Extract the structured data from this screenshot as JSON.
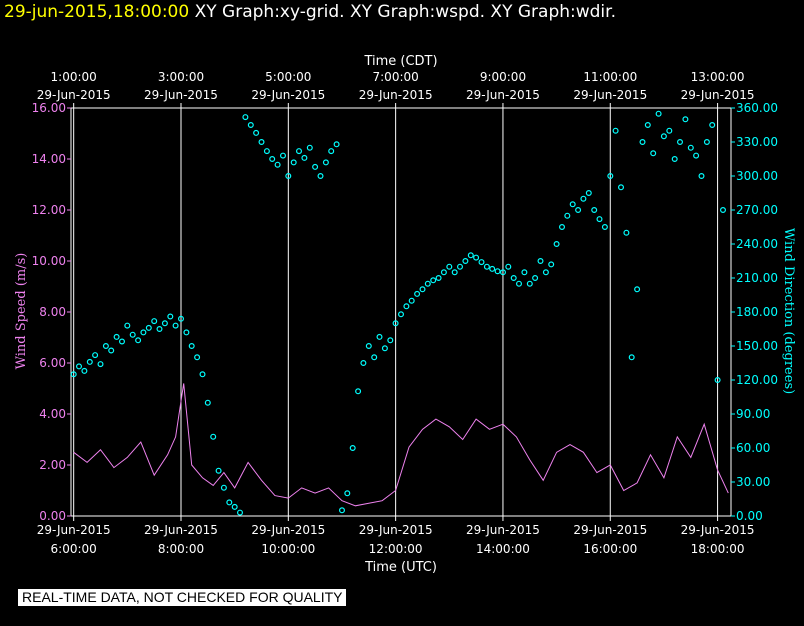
{
  "header": {
    "timestamp": "29-jun-2015,18:00:00",
    "graphs": "XY Graph:xy-grid.  XY Graph:wspd.  XY Graph:wdir."
  },
  "footer": {
    "quality_note": "REAL-TIME DATA, NOT CHECKED FOR QUALITY"
  },
  "colors": {
    "background": "#000000",
    "axes": "#ffffff",
    "grid": "#ffffff",
    "wind_speed": "#ee82ee",
    "wind_direction": "#00ffff",
    "title_timestamp": "#ffff00"
  },
  "chart_data": {
    "type": "line",
    "title": "XY Graph:xy-grid.  XY Graph:wspd.  XY Graph:wdir.",
    "grid": true,
    "x": {
      "bottom_label": "Time (UTC)",
      "top_label": "Time (CDT)",
      "range_utc_hours": [
        5.95,
        18.25
      ],
      "ticks_utc_hours": [
        6,
        8,
        10,
        12,
        14,
        16,
        18
      ],
      "bottom_ticks": [
        {
          "date": "29-Jun-2015",
          "time": "6:00:00"
        },
        {
          "date": "29-Jun-2015",
          "time": "8:00:00"
        },
        {
          "date": "29-Jun-2015",
          "time": "10:00:00"
        },
        {
          "date": "29-Jun-2015",
          "time": "12:00:00"
        },
        {
          "date": "29-Jun-2015",
          "time": "14:00:00"
        },
        {
          "date": "29-Jun-2015",
          "time": "16:00:00"
        },
        {
          "date": "29-Jun-2015",
          "time": "18:00:00"
        }
      ],
      "top_ticks": [
        {
          "date": "29-Jun-2015",
          "time": "1:00:00"
        },
        {
          "date": "29-Jun-2015",
          "time": "3:00:00"
        },
        {
          "date": "29-Jun-2015",
          "time": "5:00:00"
        },
        {
          "date": "29-Jun-2015",
          "time": "7:00:00"
        },
        {
          "date": "29-Jun-2015",
          "time": "9:00:00"
        },
        {
          "date": "29-Jun-2015",
          "time": "11:00:00"
        },
        {
          "date": "29-Jun-2015",
          "time": "13:00:00"
        }
      ]
    },
    "y_left": {
      "label": "Wind Speed (m/s)",
      "range": [
        0,
        16
      ],
      "ticks": [
        "0.00",
        "2.00",
        "4.00",
        "6.00",
        "8.00",
        "10.00",
        "12.00",
        "14.00",
        "16.00"
      ]
    },
    "y_right": {
      "label": "Wind Direction (degrees)",
      "range": [
        0,
        360
      ],
      "ticks": [
        "0.00",
        "30.00",
        "60.00",
        "90.00",
        "120.00",
        "150.00",
        "180.00",
        "210.00",
        "240.00",
        "270.00",
        "300.00",
        "330.00",
        "360.00"
      ]
    },
    "series": [
      {
        "name": "wspd",
        "axis": "left",
        "style": "line",
        "x_utc_hours": [
          6.0,
          6.25,
          6.5,
          6.75,
          7.0,
          7.25,
          7.5,
          7.75,
          7.9,
          8.05,
          8.2,
          8.4,
          8.6,
          8.8,
          9.0,
          9.25,
          9.5,
          9.75,
          10.0,
          10.25,
          10.5,
          10.75,
          11.0,
          11.25,
          11.5,
          11.75,
          12.0,
          12.25,
          12.5,
          12.75,
          13.0,
          13.25,
          13.5,
          13.75,
          14.0,
          14.25,
          14.5,
          14.75,
          15.0,
          15.25,
          15.5,
          15.75,
          16.0,
          16.25,
          16.5,
          16.75,
          17.0,
          17.25,
          17.5,
          17.75,
          18.0,
          18.2
        ],
        "values": [
          2.5,
          2.1,
          2.6,
          1.9,
          2.3,
          2.9,
          1.6,
          2.4,
          3.1,
          5.2,
          2.0,
          1.5,
          1.2,
          1.7,
          1.1,
          2.1,
          1.4,
          0.8,
          0.7,
          1.1,
          0.9,
          1.1,
          0.6,
          0.4,
          0.5,
          0.6,
          1.0,
          2.7,
          3.4,
          3.8,
          3.5,
          3.0,
          3.8,
          3.4,
          3.6,
          3.1,
          2.2,
          1.4,
          2.5,
          2.8,
          2.5,
          1.7,
          2.0,
          1.0,
          1.3,
          2.4,
          1.5,
          3.1,
          2.3,
          3.6,
          1.8,
          0.9
        ]
      },
      {
        "name": "wdir",
        "axis": "right",
        "style": "points",
        "x_utc_hours": [
          6.0,
          6.1,
          6.2,
          6.3,
          6.4,
          6.5,
          6.6,
          6.7,
          6.8,
          6.9,
          7.0,
          7.1,
          7.2,
          7.3,
          7.4,
          7.5,
          7.6,
          7.7,
          7.8,
          7.9,
          8.0,
          8.1,
          8.2,
          8.3,
          8.4,
          8.5,
          8.6,
          8.7,
          8.8,
          8.9,
          9.0,
          9.1,
          9.2,
          9.3,
          9.4,
          9.5,
          9.6,
          9.7,
          9.8,
          9.9,
          10.0,
          10.1,
          10.2,
          10.3,
          10.4,
          10.5,
          10.6,
          10.7,
          10.8,
          10.9,
          11.0,
          11.1,
          11.2,
          11.3,
          11.4,
          11.5,
          11.6,
          11.7,
          11.8,
          11.9,
          12.0,
          12.1,
          12.2,
          12.3,
          12.4,
          12.5,
          12.6,
          12.7,
          12.8,
          12.9,
          13.0,
          13.1,
          13.2,
          13.3,
          13.4,
          13.5,
          13.6,
          13.7,
          13.8,
          13.9,
          14.0,
          14.1,
          14.2,
          14.3,
          14.4,
          14.5,
          14.6,
          14.7,
          14.8,
          14.9,
          15.0,
          15.1,
          15.2,
          15.3,
          15.4,
          15.5,
          15.6,
          15.7,
          15.8,
          15.9,
          16.0,
          16.1,
          16.2,
          16.3,
          16.4,
          16.5,
          16.6,
          16.7,
          16.8,
          16.9,
          17.0,
          17.1,
          17.2,
          17.3,
          17.4,
          17.5,
          17.6,
          17.7,
          17.8,
          17.9,
          18.0,
          18.1
        ],
        "values": [
          125,
          132,
          128,
          136,
          142,
          134,
          150,
          146,
          158,
          154,
          168,
          160,
          155,
          162,
          166,
          172,
          165,
          170,
          176,
          168,
          174,
          162,
          150,
          140,
          125,
          100,
          70,
          40,
          25,
          12,
          8,
          3,
          352,
          345,
          338,
          330,
          322,
          315,
          310,
          318,
          300,
          312,
          322,
          316,
          325,
          308,
          300,
          312,
          322,
          328,
          5,
          20,
          60,
          110,
          135,
          150,
          140,
          158,
          148,
          155,
          170,
          178,
          185,
          190,
          196,
          200,
          205,
          208,
          210,
          215,
          220,
          215,
          220,
          225,
          230,
          228,
          224,
          220,
          218,
          216,
          215,
          220,
          210,
          205,
          215,
          205,
          210,
          225,
          215,
          222,
          240,
          255,
          265,
          275,
          270,
          280,
          285,
          270,
          262,
          255,
          300,
          340,
          290,
          250,
          140,
          200,
          330,
          345,
          320,
          355,
          335,
          340,
          315,
          330,
          350,
          325,
          318,
          300,
          330,
          345,
          120,
          270
        ]
      }
    ]
  }
}
